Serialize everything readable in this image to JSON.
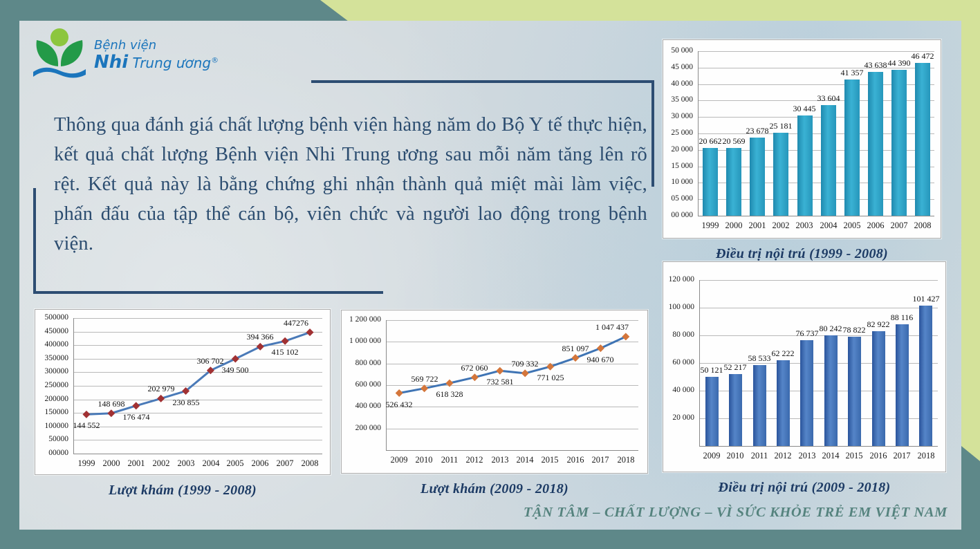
{
  "logo": {
    "line1": "Bệnh viện",
    "line2_bold": "Nhi",
    "line2_rest": " Trung ương",
    "reg_mark": "®"
  },
  "paragraph": "Thông qua đánh giá chất lượng bệnh viện hàng năm do Bộ Y tế thực hiện, kết quả chất lượng Bệnh viện Nhi Trung ương sau mỗi năm tăng lên rõ rệt. Kết quả này là bằng chứng ghi nhận thành quả miệt mài làm việc, phấn đấu của tập thể cán bộ, viên chức và người lao động trong bệnh viện.",
  "footer": "TẬN TÂM – CHẤT LƯỢNG – VÌ SỨC KHỎE TRẺ EM VIỆT NAM",
  "colors": {
    "frame_teal": "#5e8889",
    "frame_green": "#d4e29a",
    "paper": "#d2dadf",
    "text_navy": "#2c4d70",
    "caption_navy": "#1c3a64",
    "footer_teal": "#55837e",
    "logo_blue": "#1b75bc",
    "logo_green": "#239a48",
    "logo_bud_green": "#8cc63e",
    "bar_teal": "#2ba3c7",
    "bar_blue": "#4073b8",
    "line_blue": "#4a7ab8",
    "marker_red": "#a13133",
    "marker_orange": "#d4763b"
  },
  "chart_data": [
    {
      "type": "bar",
      "title": "Điều trị nội trú (1999 - 2008)",
      "categories": [
        "1999",
        "2000",
        "2001",
        "2002",
        "2003",
        "2004",
        "2005",
        "2006",
        "2007",
        "2008"
      ],
      "values": [
        20662,
        20569,
        23678,
        25181,
        30445,
        33604,
        41357,
        43638,
        44390,
        46472
      ],
      "value_labels": [
        "20 662",
        "20 569",
        "23 678",
        "25 181",
        "30 445",
        "33 604",
        "41 357",
        "43 638",
        "44 390",
        "46 472"
      ],
      "xlabel": "",
      "ylabel": "",
      "ylim": [
        0,
        50000
      ],
      "ystep": 5000,
      "ytick_labels": [
        "50 000",
        "45 000",
        "40 000",
        "35 000",
        "30 000",
        "25 000",
        "20 000",
        "15 000",
        "10 000",
        "05 000",
        "00 000"
      ],
      "grid": true,
      "legend": "none",
      "bar_color_left": "#1f89ae",
      "bar_color_mid": "#3ab2d4",
      "bar_color_right": "#2696bb"
    },
    {
      "type": "line",
      "title": "Lượt khám (1999 - 2008)",
      "categories": [
        "1999",
        "2000",
        "2001",
        "2002",
        "2003",
        "2004",
        "2005",
        "2006",
        "2007",
        "2008"
      ],
      "values": [
        144552,
        148698,
        176474,
        202979,
        230855,
        306702,
        349500,
        394366,
        415102,
        447276
      ],
      "value_labels": [
        "144 552",
        "148 698",
        "176 474",
        "202 979",
        "230 855",
        "306 702",
        "349 500",
        "394 366",
        "415 102",
        "447276"
      ],
      "xlabel": "",
      "ylabel": "",
      "ylim": [
        0,
        500000
      ],
      "ystep": 50000,
      "ytick_labels": [
        "500000",
        "450000",
        "400000",
        "350000",
        "300000",
        "250000",
        "200000",
        "150000",
        "100000",
        "50000",
        "00000"
      ],
      "grid": true,
      "legend": "none",
      "line_color": "#4a7ab8",
      "marker_color": "#a13133"
    },
    {
      "type": "line",
      "title": "Lượt khám (2009 - 2018)",
      "categories": [
        "2009",
        "2010",
        "2011",
        "2012",
        "2013",
        "2014",
        "2015",
        "2016",
        "2017",
        "2018"
      ],
      "values": [
        526432,
        569722,
        618328,
        672060,
        732581,
        709332,
        771025,
        851097,
        940670,
        1047437
      ],
      "value_labels": [
        "526 432",
        "569 722",
        "618 328",
        "672 060",
        "732 581",
        "709 332",
        "771 025",
        "851 097",
        "940 670",
        "1 047 437"
      ],
      "xlabel": "",
      "ylabel": "",
      "ylim": [
        0,
        1200000
      ],
      "ystep": 200000,
      "ytick_labels": [
        "1 200 000",
        "1 000 000",
        "800 000",
        "600 000",
        "400 000",
        "200 000"
      ],
      "grid": true,
      "legend": "none",
      "line_color": "#3f74b4",
      "marker_color": "#d4763b"
    },
    {
      "type": "bar",
      "title": "Điều trị nội trú (2009 - 2018)",
      "categories": [
        "2009",
        "2010",
        "2011",
        "2012",
        "2013",
        "2014",
        "2015",
        "2016",
        "2017",
        "2018"
      ],
      "values": [
        50121,
        52217,
        58533,
        62222,
        76737,
        80242,
        78822,
        82922,
        88116,
        101427
      ],
      "value_labels": [
        "50 121",
        "52 217",
        "58 533",
        "62 222",
        "76 737",
        "80 242",
        "78 822",
        "82 922",
        "88 116",
        "101 427"
      ],
      "xlabel": "",
      "ylabel": "",
      "ylim": [
        0,
        120000
      ],
      "ystep": 20000,
      "ytick_labels": [
        "120 000",
        "100 000",
        "80 000",
        "60 000",
        "40 000",
        "20 000"
      ],
      "grid": true,
      "legend": "none",
      "bar_color_left": "#2a549b",
      "bar_color_mid": "#5585c8",
      "bar_color_right": "#3a69ad"
    }
  ]
}
